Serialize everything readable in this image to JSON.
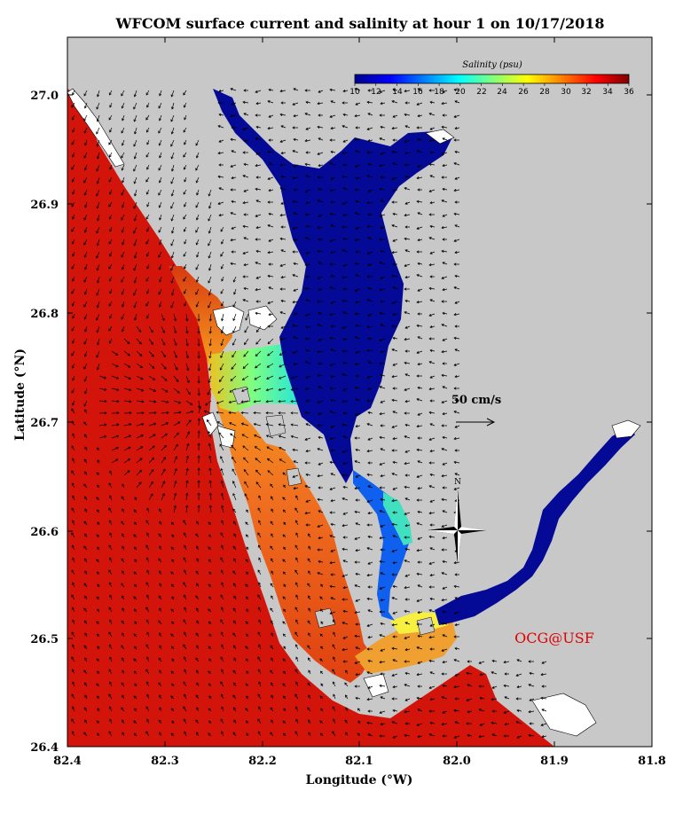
{
  "title": "WFCOM surface current and salinity at hour 1 on 10/17/2018",
  "x_axis": {
    "label": "Longitude (°W)",
    "ticks": [
      "82.4",
      "82.3",
      "82.2",
      "82.1",
      "82.0",
      "81.9",
      "81.8"
    ],
    "range_deg_w": [
      82.4,
      81.8
    ]
  },
  "y_axis": {
    "label": "Latitude (°N)",
    "ticks": [
      "27.0",
      "26.9",
      "26.8",
      "26.7",
      "26.6",
      "26.5",
      "26.4"
    ],
    "range_deg_n": [
      26.4,
      27.05
    ]
  },
  "colorbar": {
    "title": "Salinity (psu)",
    "ticks": [
      "10",
      "12",
      "14",
      "16",
      "18",
      "20",
      "22",
      "24",
      "26",
      "28",
      "30",
      "32",
      "34",
      "36"
    ],
    "range": [
      10,
      36
    ]
  },
  "vector_scale": {
    "label": "50 cm/s",
    "value_cm_s": 50
  },
  "compass": {
    "label": "N"
  },
  "credit": "OCG@USF",
  "colors": {
    "land": "#c8c8c8",
    "gulf": "#d2140a",
    "harbor": "#050a96",
    "credit": "#e00000"
  }
}
